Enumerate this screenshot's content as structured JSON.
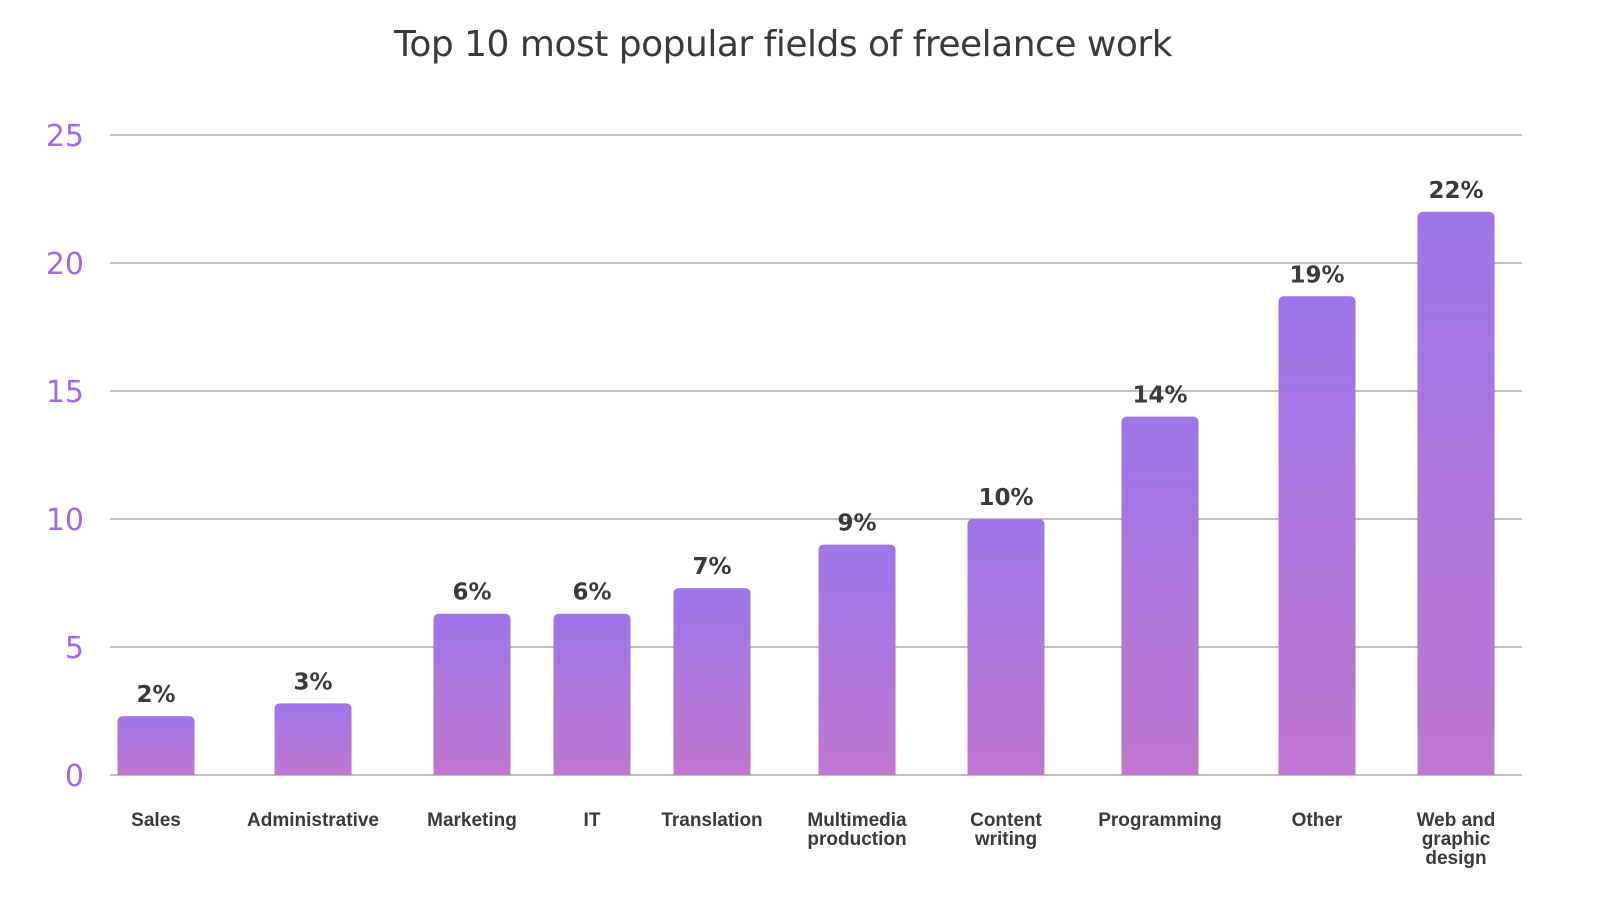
{
  "chart_data": {
    "type": "bar",
    "title": "Top 10 most popular fields of freelance work",
    "xlabel": "",
    "ylabel": "",
    "ylim": [
      0,
      25
    ],
    "yticks": [
      0,
      5,
      10,
      15,
      20,
      25
    ],
    "grid": true,
    "categories": [
      [
        "Sales"
      ],
      [
        "Administrative"
      ],
      [
        "Marketing"
      ],
      [
        "IT"
      ],
      [
        "Translation"
      ],
      [
        "Multimedia",
        "production"
      ],
      [
        "Content",
        "writing"
      ],
      [
        "Programming"
      ],
      [
        "Other"
      ],
      [
        "Web and",
        "graphic",
        "design"
      ]
    ],
    "values": [
      2.3,
      2.8,
      6.3,
      6.3,
      7.3,
      9,
      10,
      14,
      18.7,
      22
    ],
    "data_labels": [
      "2%",
      "3%",
      "6%",
      "6%",
      "7%",
      "9%",
      "10%",
      "14%",
      "19%",
      "22%"
    ],
    "colors": {
      "bar_top": "#9e76ea",
      "bar_bottom": "#bf76cf",
      "tick_label": "#a46ae8",
      "text": "#3a3a3a",
      "grid": "#9a9a9a"
    }
  }
}
